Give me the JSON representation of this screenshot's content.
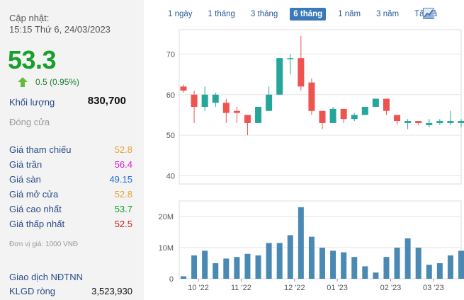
{
  "header": {
    "update_label": "Cập nhật:",
    "update_time": "15:15 Thứ 6, 24/03/2023"
  },
  "quote": {
    "price": "53.3",
    "change": "0.5 (0.95%)",
    "volume_label": "Khối lượng",
    "volume_value": "830,700",
    "close_label": "Đóng cửa"
  },
  "stats": [
    {
      "label": "Giá tham chiếu",
      "value": "52.8",
      "color": "#e8a23a"
    },
    {
      "label": "Giá trần",
      "value": "56.4",
      "color": "#d81ad8"
    },
    {
      "label": "Giá sàn",
      "value": "49.15",
      "color": "#1e6fd0"
    },
    {
      "label": "Giá mở cửa",
      "value": "52.8",
      "color": "#e8a23a"
    },
    {
      "label": "Giá cao nhất",
      "value": "53.7",
      "color": "#17a02b"
    },
    {
      "label": "Giá thấp nhất",
      "value": "52.5",
      "color": "#d02020"
    }
  ],
  "unit_note": "Đơn vị giá: 1000 VNĐ",
  "foreign": {
    "title": "Giao dịch NĐTNN",
    "klgd_label": "KLGD ròng",
    "klgd_value": "3,523,930"
  },
  "tabs": [
    {
      "label": "1 ngày",
      "active": false
    },
    {
      "label": "1 tháng",
      "active": false
    },
    {
      "label": "3 tháng",
      "active": false
    },
    {
      "label": "6 tháng",
      "active": true
    },
    {
      "label": "1 năm",
      "active": false
    },
    {
      "label": "3 năm",
      "active": false
    },
    {
      "label": "Tất cả",
      "active": false
    }
  ],
  "colors": {
    "up": "#26a69a",
    "down": "#ef5350",
    "volume": "#4a89b3",
    "price": "#17a02b"
  },
  "chart_data": [
    {
      "type": "candlestick",
      "ylim": [
        38,
        76
      ],
      "y_ticks": [
        40,
        50,
        60,
        70
      ],
      "candles": [
        {
          "o": 62,
          "h": 62.5,
          "l": 60.5,
          "c": 61
        },
        {
          "o": 60,
          "h": 61,
          "l": 53,
          "c": 57
        },
        {
          "o": 57,
          "h": 62,
          "l": 56,
          "c": 60
        },
        {
          "o": 58,
          "h": 60.5,
          "l": 57,
          "c": 60
        },
        {
          "o": 58,
          "h": 59,
          "l": 53,
          "c": 55.5
        },
        {
          "o": 56,
          "h": 57,
          "l": 53,
          "c": 55.5
        },
        {
          "o": 55,
          "h": 55,
          "l": 50,
          "c": 53
        },
        {
          "o": 53,
          "h": 57,
          "l": 53,
          "c": 57
        },
        {
          "o": 56,
          "h": 62,
          "l": 56,
          "c": 60
        },
        {
          "o": 60,
          "h": 69,
          "l": 60,
          "c": 69
        },
        {
          "o": 69,
          "h": 70,
          "l": 65,
          "c": 69
        },
        {
          "o": 69,
          "h": 74.5,
          "l": 61,
          "c": 62
        },
        {
          "o": 63,
          "h": 64,
          "l": 55,
          "c": 56
        },
        {
          "o": 56,
          "h": 56,
          "l": 51.5,
          "c": 53
        },
        {
          "o": 53,
          "h": 57,
          "l": 53,
          "c": 56.5
        },
        {
          "o": 56.5,
          "h": 56.5,
          "l": 53,
          "c": 54
        },
        {
          "o": 54,
          "h": 55.5,
          "l": 53.5,
          "c": 55
        },
        {
          "o": 55,
          "h": 57,
          "l": 55,
          "c": 57
        },
        {
          "o": 57,
          "h": 59,
          "l": 57,
          "c": 59
        },
        {
          "o": 59,
          "h": 59,
          "l": 55,
          "c": 56
        },
        {
          "o": 55,
          "h": 55,
          "l": 52.5,
          "c": 53.5
        },
        {
          "o": 53,
          "h": 54,
          "l": 51.5,
          "c": 53.5
        },
        {
          "o": 53.5,
          "h": 53.5,
          "l": 52.5,
          "c": 53
        },
        {
          "o": 52.5,
          "h": 54,
          "l": 52,
          "c": 53
        },
        {
          "o": 53,
          "h": 54,
          "l": 52.5,
          "c": 53.5
        },
        {
          "o": 53,
          "h": 56,
          "l": 52.5,
          "c": 53.5
        },
        {
          "o": 53,
          "h": 54,
          "l": 52,
          "c": 53.5
        }
      ]
    },
    {
      "type": "bar",
      "ylim": [
        0,
        25
      ],
      "y_ticks": [
        {
          "value": 0,
          "label": "0"
        },
        {
          "value": 10,
          "label": "10M"
        },
        {
          "value": 20,
          "label": "20M"
        }
      ],
      "values": [
        0.8,
        7.5,
        9,
        5,
        6.5,
        7,
        8,
        7.5,
        11.5,
        11.5,
        14,
        23,
        13.5,
        10,
        9,
        8.5,
        7,
        4,
        2,
        7,
        10,
        13,
        10,
        4.5,
        5,
        7.5,
        9
      ],
      "x_ticks": [
        {
          "label": "10 '22",
          "index": 1
        },
        {
          "label": "11 '22",
          "index": 5
        },
        {
          "label": "12 '22",
          "index": 10
        },
        {
          "label": "01 '23",
          "index": 14
        },
        {
          "label": "02 '23",
          "index": 19
        },
        {
          "label": "03 '23",
          "index": 23
        }
      ]
    }
  ]
}
